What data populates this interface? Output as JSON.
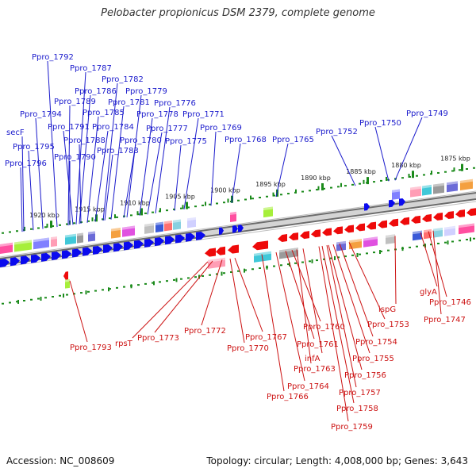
{
  "title": "Pelobacter propionicus DSM 2379, complete genome",
  "footer": {
    "accession": "Accession: NC_008609",
    "summary": "Topology: circular; Length: 4,008,000 bp; Genes: 3,643"
  },
  "colors": {
    "forward_label": "#1a1acc",
    "reverse_label": "#cc1111",
    "forward_arrow": "#0a0aee",
    "reverse_arrow": "#ee0a0a",
    "backbone": "#8a8a8a",
    "tick": "#1a8a1a"
  },
  "scale_ticks": [
    "1875 kbp",
    "1880 kbp",
    "1885 kbp",
    "1890 kbp",
    "1895 kbp",
    "1900 kbp",
    "1905 kbp",
    "1910 kbp",
    "1915 kbp",
    "1920 kbp"
  ],
  "genes_forward": [
    "Ppro_1792",
    "Ppro_1787",
    "Ppro_1786",
    "Ppro_1782",
    "Ppro_1779",
    "Ppro_1789",
    "Ppro_1785",
    "Ppro_1781",
    "Ppro_1776",
    "Ppro_1794",
    "Ppro_1778",
    "Ppro_1771",
    "Ppro_1791",
    "Ppro_1784",
    "Ppro_1777",
    "Ppro_1769",
    "secF",
    "Ppro_1788",
    "Ppro_1780",
    "Ppro_1775",
    "Ppro_1768",
    "Ppro_1795",
    "Ppro_1783",
    "Ppro_1790",
    "Ppro_1796",
    "Ppro_1765",
    "Ppro_1752",
    "Ppro_1750",
    "Ppro_1749"
  ],
  "genes_reverse": [
    "Ppro_1793",
    "rpsT",
    "Ppro_1773",
    "Ppro_1772",
    "Ppro_1767",
    "Ppro_1770",
    "Ppro_1760",
    "Ppro_1761",
    "infA",
    "Ppro_1763",
    "Ppro_1764",
    "Ppro_1766",
    "Ppro_1753",
    "Ppro_1754",
    "Ppro_1755",
    "Ppro_1756",
    "Ppro_1757",
    "Ppro_1758",
    "Ppro_1759",
    "ispG",
    "glyA",
    "Ppro_1746",
    "Ppro_1747"
  ]
}
